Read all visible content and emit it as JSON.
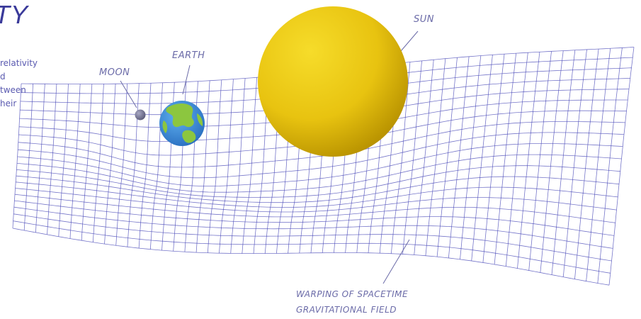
{
  "title": "TY",
  "intro_lines": [
    "relativity",
    "d",
    "tween",
    "heir"
  ],
  "labels": {
    "moon": "MOON",
    "earth": "EARTH",
    "sun": "SUN",
    "warp_line1": "WARPING OF SPACETIME",
    "warp_line2": "GRAVITATIONAL FIELD"
  },
  "colors": {
    "grid": "#4a4ab8",
    "label": "#6b6ba8",
    "title": "#3a3a9a",
    "sun_light": "#f4d21a",
    "sun_dark": "#c09a00",
    "earth_ocean": "#3b8fd9",
    "earth_land": "#8cc63f",
    "moon": "#7a7a9a"
  }
}
